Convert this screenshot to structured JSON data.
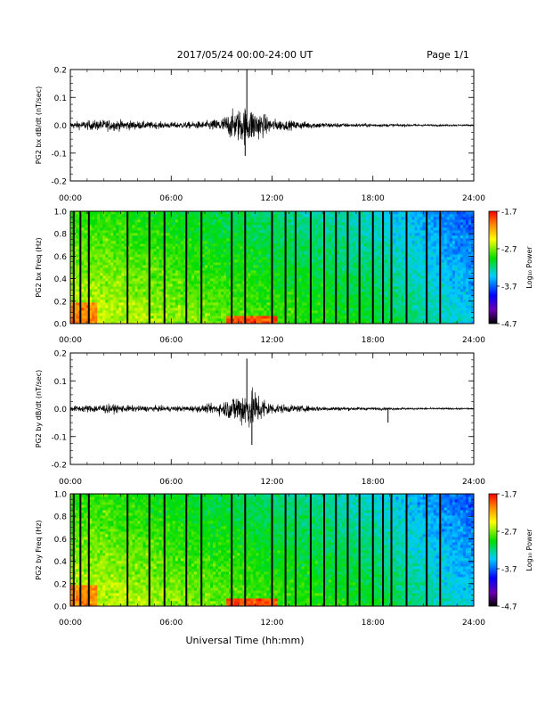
{
  "header": {
    "date_range": "2017/05/24  00:00-24:00 UT",
    "page": "Page 1/1"
  },
  "colorbar": {
    "label": "Log₁₀ Power",
    "ticks": [
      "-1.7",
      "-2.7",
      "-3.7",
      "-4.7"
    ]
  },
  "footer": {
    "xlabel": "Universal Time (hh:mm)"
  },
  "chart_data": [
    {
      "type": "line",
      "ylabel": "PG2 bx dB/dt (nT/sec)",
      "xlim": [
        0,
        24
      ],
      "ylim": [
        -0.2,
        0.2
      ],
      "y_ticks": [
        "0.2",
        "0.1",
        "0.0",
        "-0.1",
        "-0.2"
      ],
      "x_ticks": [
        "00:00",
        "06:00",
        "12:00",
        "18:00",
        "24:00"
      ],
      "envelope": {
        "hours": [
          0,
          1,
          2,
          3,
          4,
          5,
          6,
          7,
          8,
          9,
          9.5,
          10,
          10.5,
          11,
          11.5,
          12,
          13,
          14,
          15,
          16,
          17,
          18,
          19,
          20,
          21,
          22,
          23,
          24
        ],
        "amplitude": [
          0.018,
          0.025,
          0.03,
          0.028,
          0.022,
          0.018,
          0.017,
          0.018,
          0.022,
          0.04,
          0.07,
          0.09,
          0.1,
          0.09,
          0.06,
          0.035,
          0.025,
          0.02,
          0.015,
          0.012,
          0.01,
          0.009,
          0.008,
          0.007,
          0.006,
          0.005,
          0.005,
          0.004
        ]
      },
      "spikes": [
        {
          "hour": 10.5,
          "value": 0.2
        },
        {
          "hour": 10.4,
          "value": -0.11
        }
      ]
    },
    {
      "type": "heatmap",
      "ylabel": "PG2 bx Freq (Hz)",
      "xlim": [
        0,
        24
      ],
      "ylim": [
        0,
        1
      ],
      "zlim": [
        -4.7,
        -1.7
      ],
      "y_ticks": [
        "1.0",
        "0.8",
        "0.6",
        "0.4",
        "0.2",
        "0.0"
      ],
      "x_ticks": [
        "00:00",
        "06:00",
        "12:00",
        "18:00",
        "24:00"
      ],
      "gaps_hours": [
        0.2,
        0.6,
        1.1,
        3.4,
        4.7,
        5.6,
        6.9,
        7.8,
        9.6,
        10.4,
        12.0,
        12.8,
        13.4,
        14.3,
        15.1,
        15.8,
        16.5,
        17.2,
        18.0,
        18.6,
        19.1,
        20.0,
        21.2,
        22.0
      ]
    },
    {
      "type": "line",
      "ylabel": "PG2 by dB/dt (nT/sec)",
      "xlim": [
        0,
        24
      ],
      "ylim": [
        -0.2,
        0.2
      ],
      "y_ticks": [
        "0.2",
        "0.1",
        "0.0",
        "-0.1",
        "-0.2"
      ],
      "x_ticks": [
        "00:00",
        "06:00",
        "12:00",
        "18:00",
        "24:00"
      ],
      "envelope": {
        "hours": [
          0,
          1,
          2,
          3,
          4,
          5,
          6,
          7,
          8,
          9,
          9.5,
          10,
          10.5,
          11,
          11.5,
          12,
          13,
          14,
          15,
          16,
          17,
          18,
          19,
          20,
          21,
          22,
          23,
          24
        ],
        "amplitude": [
          0.015,
          0.02,
          0.025,
          0.02,
          0.016,
          0.015,
          0.015,
          0.016,
          0.02,
          0.035,
          0.06,
          0.09,
          0.11,
          0.1,
          0.06,
          0.03,
          0.02,
          0.016,
          0.013,
          0.011,
          0.009,
          0.008,
          0.007,
          0.006,
          0.005,
          0.005,
          0.004,
          0.004
        ]
      },
      "spikes": [
        {
          "hour": 10.5,
          "value": 0.18
        },
        {
          "hour": 10.8,
          "value": -0.13
        },
        {
          "hour": 18.9,
          "value": -0.05
        }
      ]
    },
    {
      "type": "heatmap",
      "ylabel": "PG2 by Freq (Hz)",
      "xlim": [
        0,
        24
      ],
      "ylim": [
        0,
        1
      ],
      "zlim": [
        -4.7,
        -1.7
      ],
      "y_ticks": [
        "1.0",
        "0.8",
        "0.6",
        "0.4",
        "0.2",
        "0.0"
      ],
      "x_ticks": [
        "00:00",
        "06:00",
        "12:00",
        "18:00",
        "24:00"
      ],
      "gaps_hours": [
        0.2,
        0.6,
        1.1,
        3.4,
        4.7,
        5.6,
        6.9,
        7.8,
        9.6,
        10.4,
        12.0,
        12.8,
        13.4,
        14.3,
        15.1,
        15.8,
        16.5,
        17.2,
        18.0,
        18.6,
        19.1,
        20.0,
        21.2,
        22.0
      ]
    }
  ]
}
